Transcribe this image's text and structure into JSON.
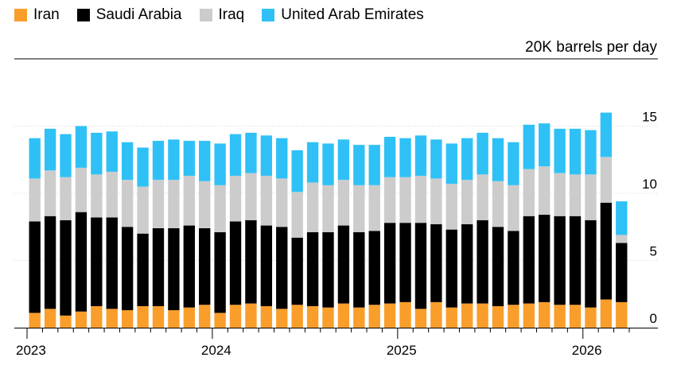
{
  "chart_data": {
    "type": "bar",
    "stacked": true,
    "unit_label": "20K barrels per day",
    "legend": [
      {
        "name": "Iran",
        "color": "#f99e2b"
      },
      {
        "name": "Saudi Arabia",
        "color": "#000000"
      },
      {
        "name": "Iraq",
        "color": "#cccccc"
      },
      {
        "name": "United Arab Emirates",
        "color": "#2fc1f6"
      }
    ],
    "x_tick_labels": [
      "2023",
      "2024",
      "2025",
      "2026"
    ],
    "y_tick_labels": [
      "0",
      "5",
      "10",
      "15"
    ],
    "ylim": [
      0,
      16.5
    ],
    "months": [
      "2023-01",
      "2023-02",
      "2023-03",
      "2023-04",
      "2023-05",
      "2023-06",
      "2023-07",
      "2023-08",
      "2023-09",
      "2023-10",
      "2023-11",
      "2023-12",
      "2024-01",
      "2024-02",
      "2024-03",
      "2024-04",
      "2024-05",
      "2024-06",
      "2024-07",
      "2024-08",
      "2024-09",
      "2024-10",
      "2024-11",
      "2024-12",
      "2025-01",
      "2025-02",
      "2025-03",
      "2025-04",
      "2025-05",
      "2025-06",
      "2025-07",
      "2025-08",
      "2025-09",
      "2025-10",
      "2025-11",
      "2025-12",
      "2026-01",
      "2026-02",
      "2026-03"
    ],
    "series": [
      {
        "name": "Iran",
        "values": [
          1.1,
          1.4,
          0.9,
          1.2,
          1.6,
          1.4,
          1.3,
          1.6,
          1.6,
          1.3,
          1.5,
          1.7,
          1.1,
          1.7,
          1.8,
          1.6,
          1.4,
          1.7,
          1.6,
          1.5,
          1.8,
          1.5,
          1.7,
          1.8,
          1.9,
          1.4,
          1.9,
          1.5,
          1.8,
          1.8,
          1.6,
          1.7,
          1.8,
          1.9,
          1.7,
          1.7,
          1.5,
          2.1,
          1.9
        ]
      },
      {
        "name": "Saudi Arabia",
        "values": [
          6.8,
          6.9,
          7.1,
          7.4,
          6.6,
          6.8,
          6.2,
          5.4,
          5.8,
          6.1,
          6.1,
          5.7,
          6.0,
          6.2,
          6.2,
          6.0,
          6.1,
          5.0,
          5.5,
          5.6,
          5.8,
          5.6,
          5.5,
          6.0,
          5.9,
          6.4,
          5.8,
          5.8,
          5.9,
          6.2,
          5.9,
          5.5,
          6.5,
          6.5,
          6.6,
          6.6,
          6.5,
          7.2,
          4.4
        ]
      },
      {
        "name": "Iraq",
        "values": [
          3.2,
          3.4,
          3.2,
          3.3,
          3.2,
          3.4,
          3.5,
          3.5,
          3.6,
          3.6,
          3.7,
          3.5,
          3.5,
          3.4,
          3.5,
          3.7,
          3.6,
          3.4,
          3.7,
          3.5,
          3.4,
          3.5,
          3.4,
          3.4,
          3.4,
          3.5,
          3.4,
          3.4,
          3.3,
          3.4,
          3.4,
          3.4,
          3.5,
          3.6,
          3.2,
          3.1,
          3.4,
          3.4,
          0.6
        ]
      },
      {
        "name": "United Arab Emirates",
        "values": [
          3.0,
          3.1,
          3.2,
          3.1,
          3.1,
          3.0,
          2.8,
          2.9,
          2.9,
          3.0,
          2.6,
          3.0,
          3.1,
          3.1,
          3.0,
          3.0,
          3.0,
          3.1,
          3.0,
          3.1,
          3.0,
          3.0,
          3.0,
          3.0,
          2.9,
          3.0,
          2.9,
          3.0,
          3.1,
          3.1,
          3.2,
          3.2,
          3.3,
          3.2,
          3.3,
          3.4,
          3.3,
          3.3,
          2.5
        ]
      }
    ]
  }
}
